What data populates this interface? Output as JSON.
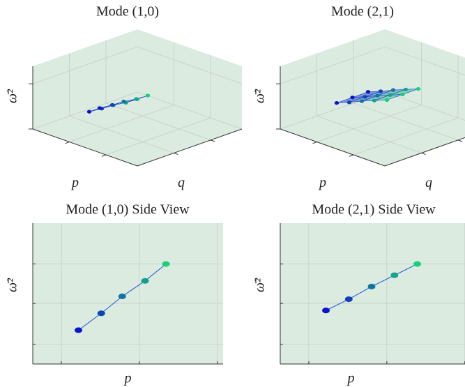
{
  "chart_data": [
    {
      "type": "surface3d",
      "title": "Mode (1,0)",
      "xlabel": "p",
      "ylabel": "q",
      "zlabel": "ω̄²",
      "p": [
        0.24,
        0.36,
        0.47,
        0.59,
        0.7
      ],
      "q": [
        0.3,
        0.4
      ],
      "z": [
        [
          0.24,
          0.36,
          0.48,
          0.59,
          0.71
        ],
        [
          0.24,
          0.36,
          0.48,
          0.59,
          0.71
        ]
      ],
      "plim": [
        0,
        1
      ],
      "qlim": [
        0,
        1
      ],
      "zlim": [
        0,
        1
      ],
      "pticks": [
        0.35,
        0.7
      ],
      "qticks": [
        0.35,
        0.7
      ],
      "zticks": [
        0,
        0.72
      ],
      "colormap": [
        "#0a14c8",
        "#14d27a"
      ],
      "pane_color": "#dcebe0"
    },
    {
      "type": "surface3d",
      "title": "Mode (2,1)",
      "xlabel": "p",
      "ylabel": "q",
      "zlabel": "ω̄²",
      "p": [
        0.24,
        0.36,
        0.48,
        0.6,
        0.72
      ],
      "q": [
        0.3,
        0.45,
        0.6
      ],
      "z": [
        [
          0.38,
          0.46,
          0.55,
          0.63,
          0.71
        ],
        [
          0.38,
          0.46,
          0.55,
          0.63,
          0.71
        ],
        [
          0.38,
          0.46,
          0.55,
          0.63,
          0.71
        ]
      ],
      "plim": [
        0,
        1
      ],
      "qlim": [
        0,
        1
      ],
      "zlim": [
        0,
        1
      ],
      "pticks": [
        0.35,
        0.7
      ],
      "qticks": [
        0.35,
        0.7
      ],
      "zticks": [
        0,
        0.72
      ],
      "colormap": [
        "#0a14c8",
        "#14d27a"
      ],
      "pane_color": "#dcebe0"
    },
    {
      "type": "line",
      "title": "Mode (1,0) Side View",
      "xlabel": "p",
      "ylabel": "ω̄²",
      "x": [
        0.24,
        0.36,
        0.47,
        0.59,
        0.7
      ],
      "values": [
        0.24,
        0.36,
        0.48,
        0.59,
        0.71
      ],
      "xlim": [
        0,
        1
      ],
      "ylim": [
        0,
        1
      ],
      "xticks": [
        0.15,
        0.56,
        0.97
      ],
      "yticks": [
        0.14,
        0.43,
        0.71
      ],
      "grid": true,
      "colormap": [
        "#0a14c8",
        "#14d27a"
      ],
      "pane_color": "#dcebe0"
    },
    {
      "type": "line",
      "title": "Mode (2,1) Side View",
      "xlabel": "p",
      "ylabel": "ω̄²",
      "x": [
        0.24,
        0.36,
        0.48,
        0.6,
        0.72
      ],
      "values": [
        0.38,
        0.46,
        0.55,
        0.63,
        0.71
      ],
      "xlim": [
        0,
        1
      ],
      "ylim": [
        0,
        1
      ],
      "xticks": [
        0.15,
        0.56,
        0.97
      ],
      "yticks": [
        0.14,
        0.43,
        0.71
      ],
      "grid": true,
      "colormap": [
        "#0a14c8",
        "#14d27a"
      ],
      "pane_color": "#dcebe0"
    }
  ]
}
